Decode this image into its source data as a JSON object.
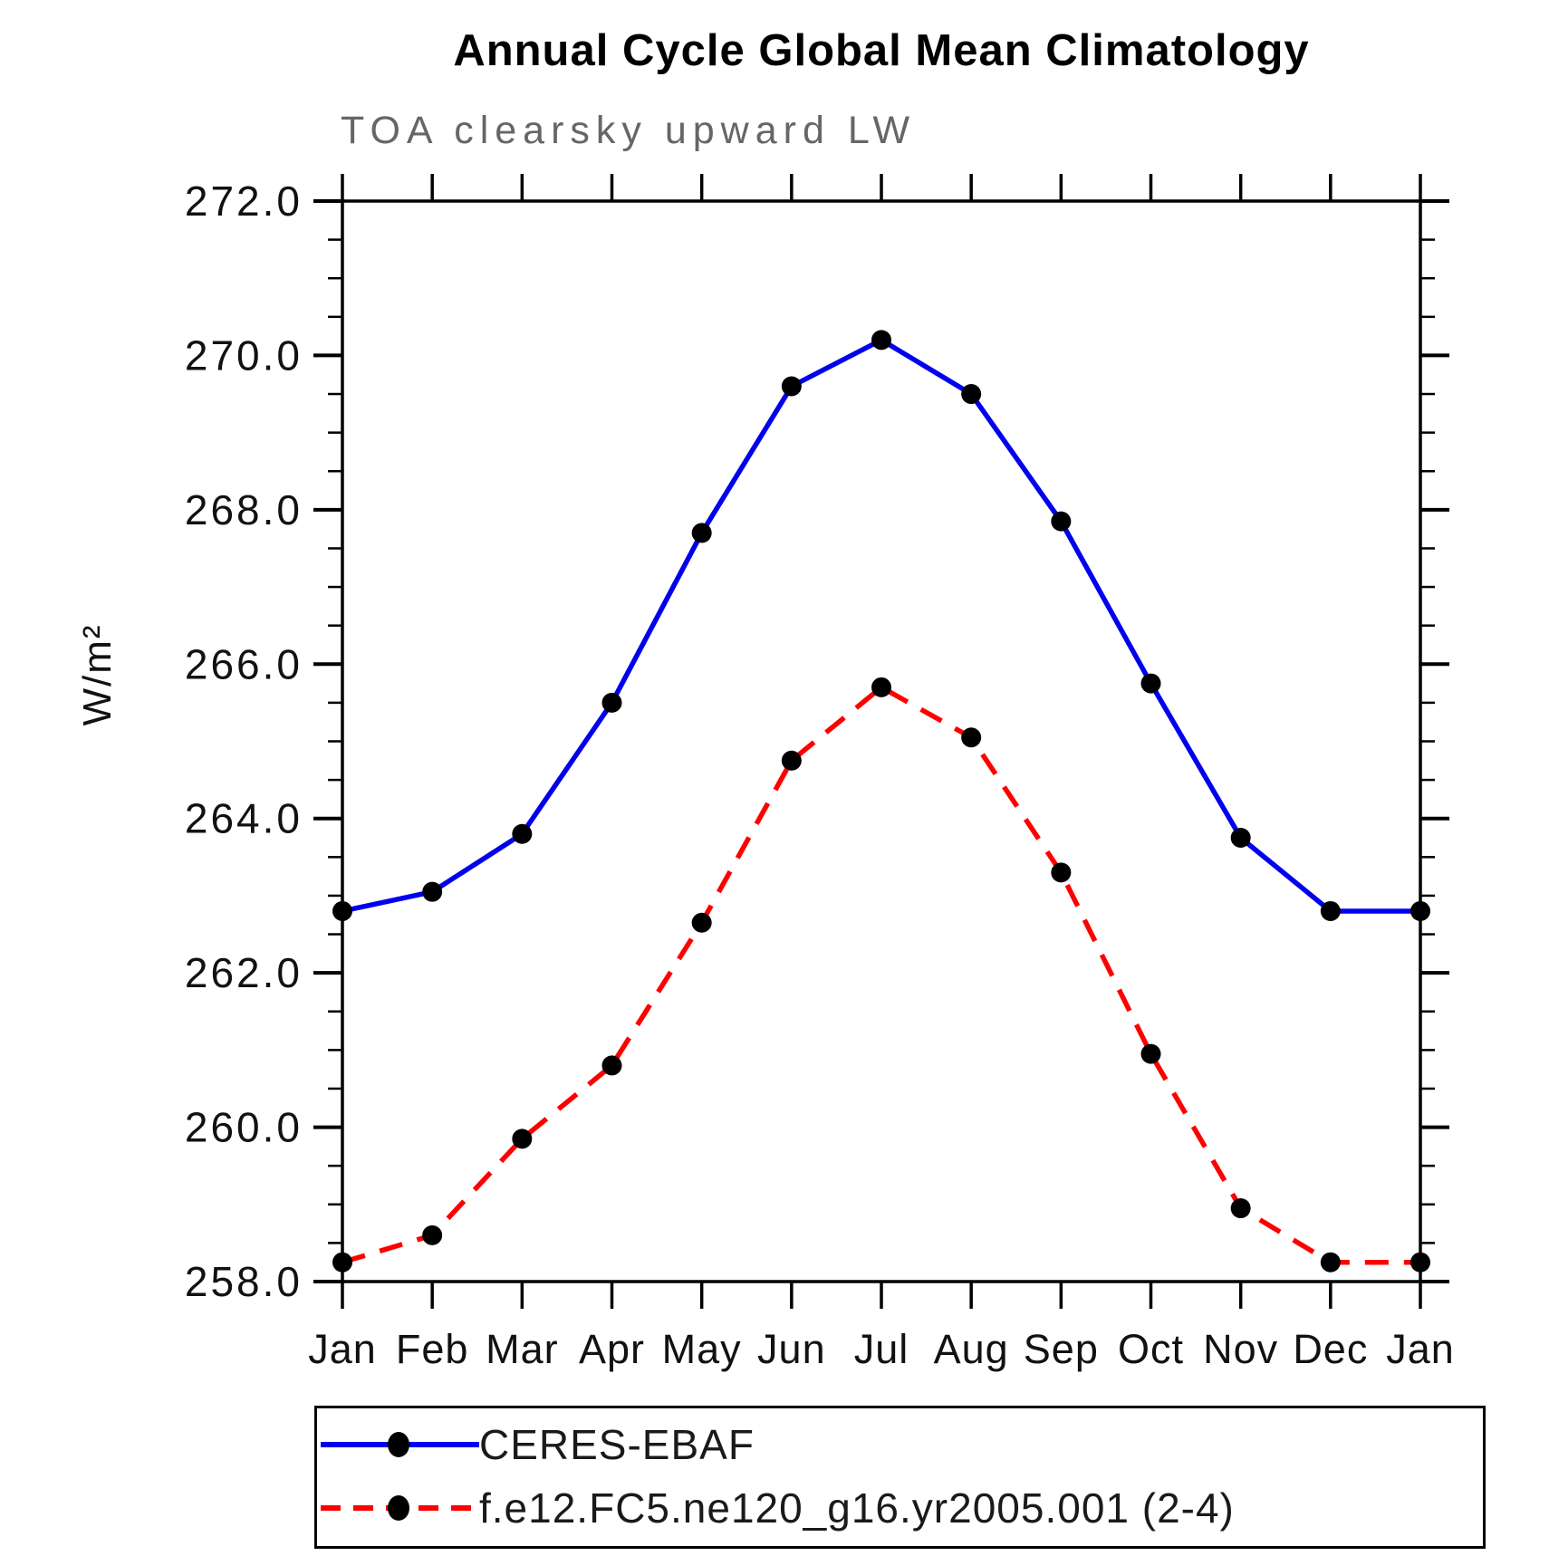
{
  "chart_data": {
    "type": "line",
    "title": "Annual Cycle Global Mean Climatology",
    "subtitle": "TOA clearsky upward LW",
    "ylabel": "W/m²",
    "xlabel": "",
    "categories": [
      "Jan",
      "Feb",
      "Mar",
      "Apr",
      "May",
      "Jun",
      "Jul",
      "Aug",
      "Sep",
      "Oct",
      "Nov",
      "Dec",
      "Jan"
    ],
    "ylim": [
      258.0,
      272.0
    ],
    "ytick_interval": 2.0,
    "yminor_interval": 0.5,
    "ytick_labels": [
      "258.0",
      "260.0",
      "262.0",
      "264.0",
      "266.0",
      "268.0",
      "270.0",
      "272.0"
    ],
    "grid": false,
    "legend_position": "bottom",
    "series": [
      {
        "name": "CERES-EBAF",
        "color": "#0000ee",
        "line_style": "solid",
        "marker": "circle",
        "marker_color": "#000000",
        "values": [
          262.8,
          263.05,
          263.8,
          265.5,
          267.7,
          269.6,
          270.2,
          269.5,
          267.85,
          265.75,
          263.75,
          262.8,
          262.8
        ]
      },
      {
        "name": "f.e12.FC5.ne120_g16.yr2005.001 (2-4)",
        "color": "#ff0000",
        "line_style": "dashed",
        "marker": "circle",
        "marker_color": "#000000",
        "values": [
          258.25,
          258.6,
          259.85,
          260.8,
          262.65,
          264.75,
          265.7,
          265.05,
          263.3,
          260.95,
          258.95,
          258.25,
          258.25
        ]
      }
    ]
  },
  "colors": {
    "axis": "#000000",
    "title": "#000000",
    "subtitle": "#666666",
    "tick_label": "#111111",
    "background": "#ffffff"
  }
}
